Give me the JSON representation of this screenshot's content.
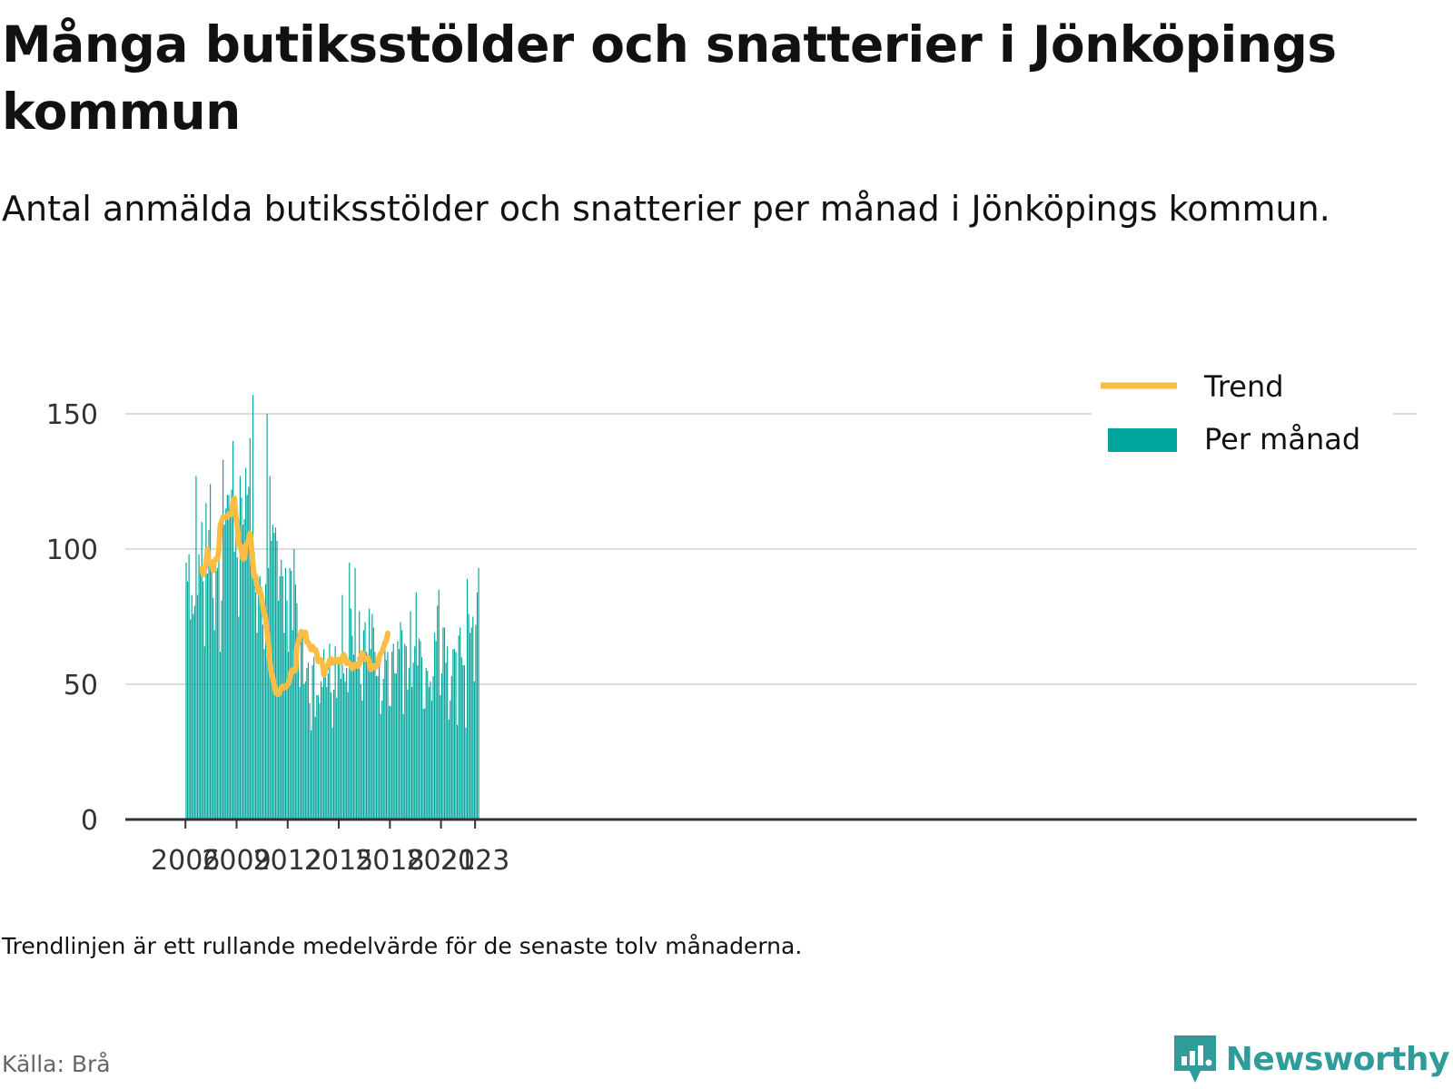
{
  "title": "Många butiksstölder och snatterier i Jönköpings kommun",
  "subtitle": "Antal anmälda butiksstölder och snatterier per månad i Jönköpings kommun.",
  "note": "Trendlinjen är ett rullande medelvärde för de senaste tolv månaderna.",
  "source": "Källa: Brå",
  "logo": {
    "text": "Newsworthy"
  },
  "colors": {
    "bars": "#00a59b",
    "trend": "#fbbd43",
    "grid": "#dddddd",
    "axis": "#333333"
  },
  "chart_data": {
    "type": "bar",
    "x_start": "2006-01",
    "x_ticks": [
      "2006",
      "2009",
      "2012",
      "2015",
      "2018",
      "2021",
      "2023"
    ],
    "y_ticks": [
      0,
      50,
      100,
      150
    ],
    "ylim": [
      0,
      160
    ],
    "grid": true,
    "legend_position": "top-right",
    "series": [
      {
        "name": "Per månad",
        "type": "bar",
        "values": [
          95,
          88,
          98,
          74,
          83,
          76,
          79,
          127,
          83,
          98,
          92,
          110,
          88,
          64,
          117,
          91,
          107,
          124,
          96,
          82,
          70,
          92,
          93,
          99,
          62,
          81,
          133,
          109,
          115,
          120,
          120,
          113,
          122,
          140,
          99,
          117,
          97,
          75,
          127,
          119,
          109,
          111,
          130,
          120,
          123,
          141,
          106,
          157,
          99,
          84,
          69,
          89,
          90,
          86,
          72,
          63,
          87,
          150,
          93,
          127,
          103,
          109,
          106,
          108,
          103,
          81,
          90,
          96,
          90,
          69,
          93,
          81,
          62,
          93,
          92,
          70,
          100,
          87,
          80,
          68,
          49,
          70,
          68,
          50,
          51,
          56,
          58,
          43,
          33,
          57,
          60,
          38,
          46,
          46,
          43,
          51,
          49,
          63,
          55,
          49,
          54,
          65,
          47,
          34,
          48,
          64,
          45,
          59,
          59,
          52,
          83,
          54,
          51,
          56,
          47,
          95,
          78,
          68,
          61,
          93,
          56,
          60,
          77,
          50,
          44,
          70,
          73,
          62,
          61,
          78,
          63,
          76,
          71,
          62,
          53,
          53,
          62,
          39,
          44,
          52,
          67,
          59,
          62,
          42,
          42,
          62,
          65,
          54,
          54,
          66,
          63,
          73,
          70,
          39,
          65,
          64,
          48,
          56,
          77,
          49,
          58,
          64,
          84,
          57,
          67,
          66,
          60,
          41,
          41,
          56,
          55,
          49,
          51,
          44,
          53,
          69,
          66,
          79,
          85,
          46,
          54,
          71,
          71,
          58,
          64,
          37,
          44,
          53,
          63,
          63,
          62,
          35,
          68,
          71,
          60,
          57,
          57,
          34,
          89,
          76,
          69,
          71,
          75,
          51,
          72,
          84,
          93
        ]
      },
      {
        "name": "Trend",
        "type": "line",
        "offset": 11,
        "values": [
          92.8,
          90.5,
          92.7,
          94.5,
          99.8,
          95.3,
          94.6,
          94.6,
          92.1,
          95.6,
          96.3,
          96.3,
          99.6,
          108.9,
          110,
          111.9,
          111.8,
          111.9,
          111.7,
          113,
          112.9,
          112.9,
          117.4,
          118.8,
          112,
          108.7,
          101.5,
          101.3,
          99.2,
          96.3,
          96.6,
          101.4,
          101.7,
          103.4,
          105.8,
          100.7,
          94.6,
          89.7,
          90,
          86.5,
          84.2,
          84.8,
          82.5,
          79,
          76.2,
          74.4,
          69.1,
          64.7,
          58,
          54.1,
          52.3,
          49.9,
          47.2,
          46.4,
          46.3,
          47.3,
          48.7,
          49.3,
          48.7,
          48.8,
          49.5,
          50.3,
          52.1,
          54.9,
          55.3,
          54.8,
          55.4,
          63.9,
          65.6,
          67.2,
          69.5,
          68.7,
          68.5,
          69.2,
          65.6,
          65.4,
          64.1,
          62.8,
          64,
          62.7,
          62.8,
          61.6,
          58.4,
          58.5,
          59,
          57.7,
          53.5,
          55.2,
          56.4,
          57.2,
          58.9,
          59.4,
          57.8,
          58.3,
          59.1,
          58.3,
          59.2,
          58.9,
          58,
          59.8,
          61,
          59.8,
          57.7,
          58.2,
          57.7,
          57.1,
          55.8,
          57.2,
          57.1,
          57.4,
          56.6,
          57.6,
          60.1,
          61.6,
          60.4,
          59.2,
          59.5,
          59.8,
          58.1,
          55.5,
          56.2,
          56.8,
          56.1,
          57.1,
          57.2,
          60.3,
          61.4,
          62,
          63.6,
          65.4,
          66.1,
          68.8
        ]
      }
    ]
  }
}
